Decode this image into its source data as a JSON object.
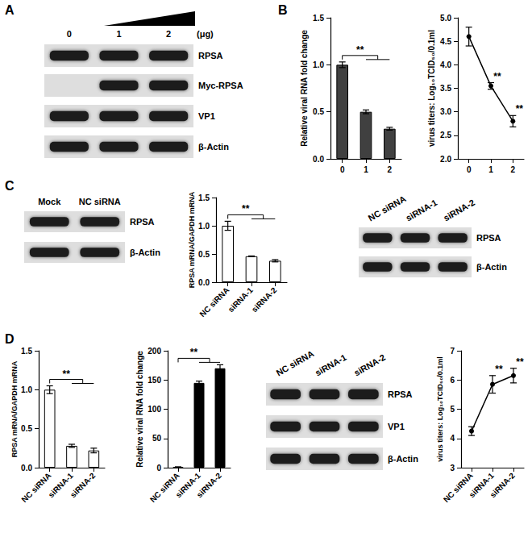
{
  "panel_labels": [
    "A",
    "B",
    "C",
    "D"
  ],
  "blots": [
    {
      "lanes": [
        "0",
        "1",
        "2"
      ],
      "unit": "(μg)",
      "rows": [
        {
          "label": "RPSA"
        },
        {
          "label": "Myc-RPSA",
          "empty_lanes": [
            0
          ]
        },
        {
          "label": "VP1"
        },
        {
          "label": "β-Actin"
        }
      ]
    },
    {
      "lanes": [
        "Mock",
        "NC siRNA"
      ],
      "rows": [
        {
          "label": "RPSA"
        },
        {
          "label": "β-Actin"
        }
      ]
    },
    {
      "lanes": [
        "NC siRNA",
        "siRNA-1",
        "siRNA-2"
      ],
      "rows": [
        {
          "label": "RPSA"
        },
        {
          "label": "β-Actin"
        }
      ]
    },
    {
      "lanes": [
        "NC siRNA",
        "siRNA-1",
        "siRNA-2"
      ],
      "rows": [
        {
          "label": "RPSA"
        },
        {
          "label": "VP1"
        },
        {
          "label": "β-Actin"
        }
      ]
    }
  ],
  "chart_data": [
    {
      "type": "bar",
      "categories": [
        "0",
        "1",
        "2"
      ],
      "values": [
        1.0,
        0.5,
        0.32
      ],
      "errors": [
        0.03,
        0.02,
        0.015
      ],
      "color": "#404040",
      "ylabel": "Relative viral RNA fold change",
      "ylim": [
        0,
        1.5
      ],
      "yticks": [
        {
          "value": 0,
          "label": "0.0"
        },
        {
          "value": 0.5,
          "label": "0.5"
        },
        {
          "value": 1,
          "label": "1.0"
        },
        {
          "value": 1.5,
          "label": "1.5"
        }
      ],
      "grid": false,
      "annotations": [
        {
          "text": "**",
          "from": 0,
          "to": [
            1,
            2
          ]
        }
      ]
    },
    {
      "type": "line",
      "categories": [
        "0",
        "1",
        "2"
      ],
      "values": [
        4.6,
        3.55,
        2.8
      ],
      "errors": [
        0.2,
        0.07,
        0.12
      ],
      "color": "#000000",
      "marker": "circle",
      "ylabel": "virus titers: Log₁₀TCID₅₀/0.1ml",
      "ylim": [
        2,
        5
      ],
      "yticks": [
        {
          "value": 2,
          "label": "2.0"
        },
        2.5,
        {
          "value": 3,
          "label": "3.0"
        },
        3.5,
        {
          "value": 4,
          "label": "4.0"
        },
        4.5,
        {
          "value": 5,
          "label": "5.0"
        }
      ],
      "grid": false,
      "annotations": [
        {
          "text": "**",
          "points": [
            1,
            2
          ]
        }
      ]
    },
    {
      "type": "bar",
      "categories": [
        "NC siRNA",
        "siRNA-1",
        "siRNA-2"
      ],
      "values": [
        1.0,
        0.46,
        0.38
      ],
      "errors": [
        0.08,
        0.005,
        0.02
      ],
      "color": "#ffffff",
      "ylabel": "RPSA mRNA/GAPDH mRNA",
      "ylim": [
        0,
        1.5
      ],
      "yticks": [
        {
          "value": 0,
          "label": "0.0"
        },
        {
          "value": 0.5,
          "label": "0.5"
        },
        {
          "value": 1,
          "label": "1.0"
        },
        {
          "value": 1.5,
          "label": "1.5"
        }
      ],
      "grid": false,
      "annotations": [
        {
          "text": "**",
          "from": 0,
          "to": [
            1,
            2
          ]
        }
      ]
    },
    {
      "type": "bar",
      "categories": [
        "NC siRNA",
        "siRNA-1",
        "siRNA-2"
      ],
      "values": [
        1.0,
        0.28,
        0.22
      ],
      "errors": [
        0.05,
        0.02,
        0.03
      ],
      "color": "#ffffff",
      "ylabel": "RPSA mRNA/GAPDH mRNA",
      "ylim": [
        0,
        1.5
      ],
      "yticks": [
        {
          "value": 0,
          "label": "0.0"
        },
        {
          "value": 0.5,
          "label": "0.5"
        },
        {
          "value": 1,
          "label": "1.0"
        },
        {
          "value": 1.5,
          "label": "1.5"
        }
      ],
      "grid": false,
      "annotations": [
        {
          "text": "**",
          "from": 0,
          "to": [
            1,
            2
          ]
        }
      ]
    },
    {
      "type": "bar",
      "categories": [
        "NC siRNA",
        "siRNA-1",
        "siRNA-2"
      ],
      "values": [
        1,
        145,
        170
      ],
      "errors": [
        0.5,
        3,
        6
      ],
      "color": "#000000",
      "ylabel": "Relative viral RNA fold change",
      "ylim": [
        0,
        200
      ],
      "yticks": [
        0,
        50,
        100,
        150,
        200
      ],
      "grid": false,
      "annotations": [
        {
          "text": "**",
          "from": 0,
          "to": [
            1,
            2
          ]
        }
      ]
    },
    {
      "type": "line",
      "categories": [
        "NC siRNA",
        "siRNA-1",
        "siRNA-2"
      ],
      "values": [
        4.25,
        5.85,
        6.15
      ],
      "errors": [
        0.15,
        0.3,
        0.25
      ],
      "color": "#000000",
      "marker": "circle",
      "ylabel": "virus titers: Log₁₀TCID₅₀/0.1ml",
      "ylim": [
        3,
        7
      ],
      "yticks": [
        3,
        4,
        5,
        6,
        7
      ],
      "grid": false,
      "annotations": [
        {
          "text": "**",
          "points": [
            1,
            2
          ]
        }
      ]
    }
  ]
}
